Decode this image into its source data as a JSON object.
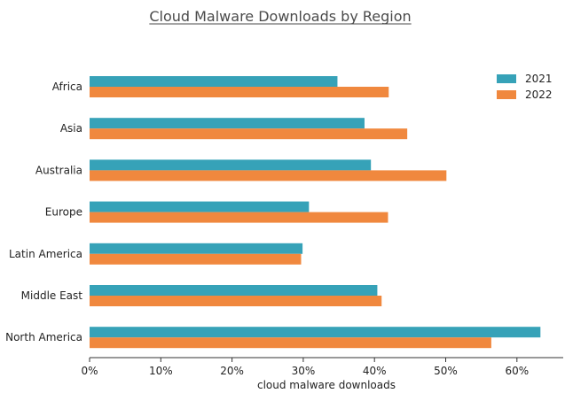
{
  "chart_data": {
    "type": "bar",
    "orientation": "horizontal",
    "title": "Cloud Malware Downloads by Region",
    "xlabel": "cloud malware downloads",
    "ylabel": "",
    "xlim": [
      0,
      0.665
    ],
    "x_ticks": [
      0,
      0.1,
      0.2,
      0.3,
      0.4,
      0.5,
      0.6
    ],
    "x_tick_labels": [
      "0%",
      "10%",
      "20%",
      "30%",
      "40%",
      "50%",
      "60%"
    ],
    "categories": [
      "Africa",
      "Asia",
      "Australia",
      "Europe",
      "Latin America",
      "Middle East",
      "North America"
    ],
    "series": [
      {
        "name": "2021",
        "color": "#36a2b8",
        "values": [
          0.348,
          0.386,
          0.395,
          0.308,
          0.299,
          0.404,
          0.633
        ]
      },
      {
        "name": "2022",
        "color": "#f0883e",
        "values": [
          0.42,
          0.446,
          0.501,
          0.419,
          0.297,
          0.41,
          0.564
        ]
      }
    ],
    "legend_position": "top-right",
    "grid": false
  }
}
